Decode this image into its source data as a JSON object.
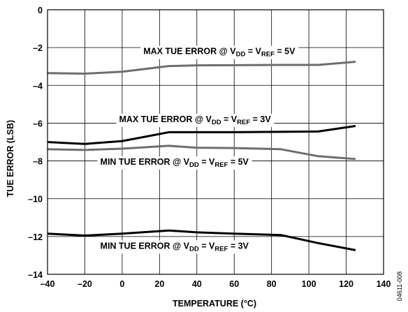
{
  "figure_id": "04611-008",
  "chart_data": {
    "type": "line",
    "xlabel": "TEMPERATURE (°C)",
    "ylabel": "TUE ERROR (LSB)",
    "xlim": [
      -40,
      140
    ],
    "ylim": [
      -14,
      0
    ],
    "xticks": [
      -40,
      -20,
      0,
      20,
      40,
      60,
      80,
      100,
      120,
      140
    ],
    "yticks": [
      0,
      -2,
      -4,
      -6,
      -8,
      -10,
      -12,
      -14
    ],
    "xtick_labels": [
      "–40",
      "–20",
      "0",
      "20",
      "40",
      "60",
      "80",
      "100",
      "120",
      "140"
    ],
    "ytick_labels": [
      "0",
      "–2",
      "–4",
      "–6",
      "–8",
      "–10",
      "–12",
      "–14"
    ],
    "grid": true,
    "series": [
      {
        "color": "#6e6e6e",
        "x": [
          -40,
          -20,
          0,
          25,
          40,
          60,
          85,
          105,
          125
        ],
        "y": [
          -3.35,
          -3.38,
          -3.28,
          -2.98,
          -2.94,
          -2.93,
          -2.92,
          -2.92,
          -2.75
        ],
        "annotation": {
          "prefix": "MAX TUE ERROR @ V",
          "sub1": "DD",
          "mid": " = V",
          "sub2": "REF",
          "suffix": " = 5V"
        }
      },
      {
        "color": "#000000",
        "x": [
          -40,
          -20,
          0,
          25,
          40,
          60,
          85,
          105,
          125
        ],
        "y": [
          -7.0,
          -7.1,
          -6.95,
          -6.48,
          -6.48,
          -6.48,
          -6.46,
          -6.44,
          -6.15
        ],
        "annotation": {
          "prefix": "MAX TUE  ERROR @ V",
          "sub1": "DD",
          "mid": " = V",
          "sub2": "REF",
          "suffix": " = 3V"
        }
      },
      {
        "color": "#6e6e6e",
        "x": [
          -40,
          -20,
          0,
          25,
          40,
          60,
          85,
          105,
          125
        ],
        "y": [
          -7.38,
          -7.42,
          -7.35,
          -7.2,
          -7.3,
          -7.32,
          -7.38,
          -7.75,
          -7.9
        ],
        "annotation": {
          "prefix": "MIN TUE ERROR @ V",
          "sub1": "DD",
          "mid": " = V",
          "sub2": "REF",
          "suffix": " = 5V"
        }
      },
      {
        "color": "#000000",
        "x": [
          -40,
          -20,
          0,
          25,
          40,
          60,
          85,
          105,
          125
        ],
        "y": [
          -11.85,
          -11.95,
          -11.85,
          -11.68,
          -11.78,
          -11.85,
          -11.92,
          -12.35,
          -12.72
        ],
        "annotation": {
          "prefix": "MIN TUE ERROR @ V",
          "sub1": "DD",
          "mid": " = V",
          "sub2": "REF",
          "suffix": " = 3V"
        }
      }
    ]
  }
}
